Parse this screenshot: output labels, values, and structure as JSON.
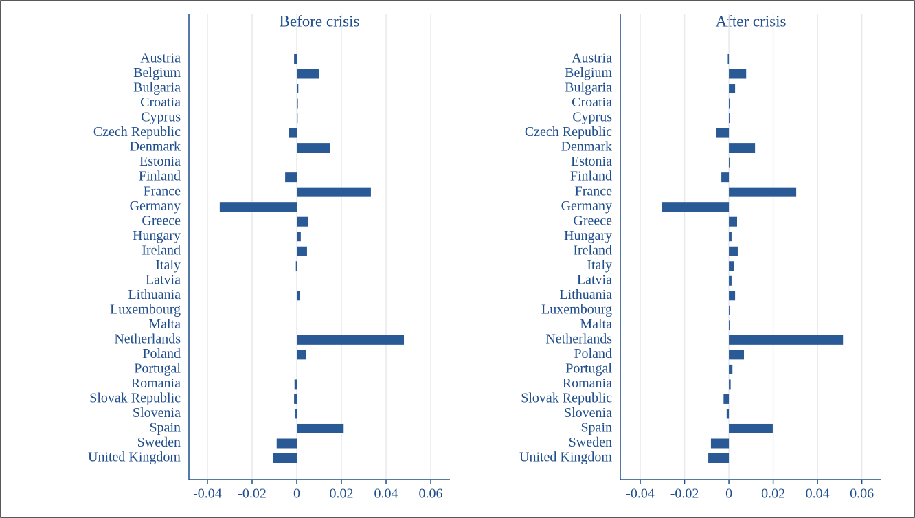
{
  "chart_data": [
    {
      "type": "bar",
      "orientation": "horizontal",
      "title": "Before crisis",
      "color": "#2a5a96",
      "grid": true,
      "categories": [
        "Austria",
        "Belgium",
        "Bulgaria",
        "Croatia",
        "Cyprus",
        "Czech Republic",
        "Denmark",
        "Estonia",
        "Finland",
        "France",
        "Germany",
        "Greece",
        "Hungary",
        "Ireland",
        "Italy",
        "Latvia",
        "Lithuania",
        "Luxembourg",
        "Malta",
        "Netherlands",
        "Poland",
        "Portugal",
        "Romania",
        "Slovak Republic",
        "Slovenia",
        "Spain",
        "Sweden",
        "United Kingdom"
      ],
      "values": [
        -0.0012,
        0.01,
        0.0007,
        0.0005,
        0.0004,
        -0.0035,
        0.0148,
        0.0002,
        -0.0052,
        0.0332,
        -0.0345,
        0.0052,
        0.0018,
        0.0046,
        -0.0004,
        0.0003,
        0.0014,
        0.0001,
        0,
        0.048,
        0.0042,
        0.0002,
        -0.001,
        -0.0012,
        -0.0006,
        0.021,
        -0.009,
        -0.0105
      ],
      "xlim": [
        -0.0483,
        0.0686
      ],
      "xticks": [
        -0.04,
        -0.02,
        0,
        0.02,
        0.04,
        0.06
      ]
    },
    {
      "type": "bar",
      "orientation": "horizontal",
      "title": "After crisis",
      "color": "#2a5a96",
      "grid": true,
      "categories": [
        "Austria",
        "Belgium",
        "Bulgaria",
        "Croatia",
        "Cyprus",
        "Czech Republic",
        "Denmark",
        "Estonia",
        "Finland",
        "France",
        "Germany",
        "Greece",
        "Hungary",
        "Ireland",
        "Italy",
        "Latvia",
        "Lithuania",
        "Luxembourg",
        "Malta",
        "Netherlands",
        "Poland",
        "Portugal",
        "Romania",
        "Slovak Republic",
        "Slovenia",
        "Spain",
        "Sweden",
        "United Kingdom"
      ],
      "values": [
        -0.0005,
        0.0078,
        0.0028,
        0.0006,
        0.0005,
        -0.0056,
        0.0118,
        0.0003,
        -0.0034,
        0.0304,
        -0.0304,
        0.0037,
        0.0012,
        0.004,
        0.0022,
        0.0012,
        0.0028,
        0.0002,
        0.0002,
        0.0515,
        0.0068,
        0.0016,
        0.0008,
        -0.0024,
        -0.001,
        0.0198,
        -0.0081,
        -0.0093
      ],
      "xlim": [
        -0.049,
        0.0688
      ],
      "xticks": [
        -0.04,
        -0.02,
        0,
        0.02,
        0.04,
        0.06
      ]
    }
  ]
}
